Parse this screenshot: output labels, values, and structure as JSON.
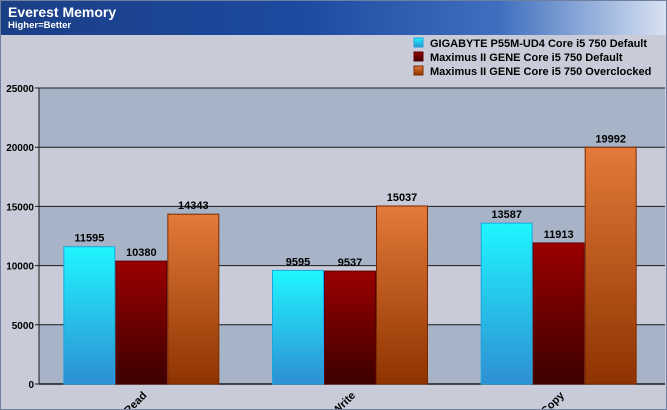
{
  "header": {
    "title": "Everest Memory",
    "subtitle": "Higher=Better"
  },
  "colors": {
    "series": [
      {
        "top": "#1ff6ff",
        "bottom": "#2e8fd3",
        "stroke": "#1aa6e0"
      },
      {
        "top": "#9b0000",
        "bottom": "#3c0000",
        "stroke": "#5a0000"
      },
      {
        "top": "#e37a3a",
        "bottom": "#8e3300",
        "stroke": "#7a2a00"
      }
    ],
    "band_light": "#c9ccd8",
    "band_dark": "#a7b4c8"
  },
  "chart_data": {
    "type": "bar",
    "categories": [
      "Read",
      "Write",
      "Copy"
    ],
    "series": [
      {
        "name": "GIGABYTE P55M-UD4 Core i5 750 Default",
        "values": [
          11595,
          9595,
          13587
        ]
      },
      {
        "name": "Maximus II GENE Core i5 750 Default",
        "values": [
          10380,
          9537,
          11913
        ]
      },
      {
        "name": "Maximus II GENE Core i5 750 Overclocked",
        "values": [
          14343,
          15037,
          19992
        ]
      }
    ],
    "ylim": [
      0,
      25000
    ],
    "yticks": [
      0,
      5000,
      10000,
      15000,
      20000,
      25000
    ],
    "grid": true,
    "legend": "top-right"
  }
}
